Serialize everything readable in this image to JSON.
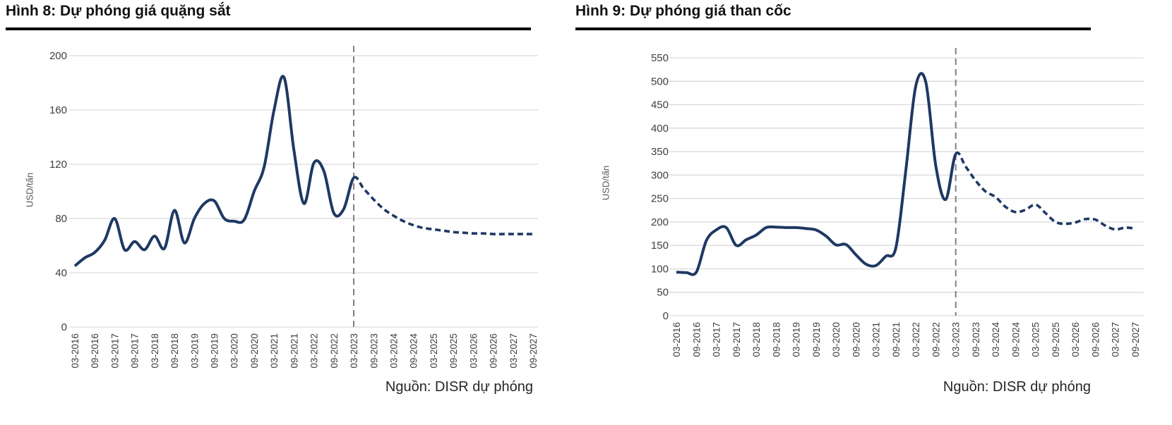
{
  "charts": [
    {
      "id": "iron-ore",
      "title": "Hình 8: Dự phóng giá quặng sắt",
      "source": "Nguồn: DISR dự phóng",
      "chart_data": {
        "type": "line",
        "title": "Dự phóng giá quặng sắt",
        "xlabel": "",
        "ylabel": "USD/tấn",
        "ylim": [
          0,
          200
        ],
        "ytick_step": 40,
        "grid": true,
        "legend": "none",
        "x_tick_labels": [
          "03-2016",
          "09-2016",
          "03-2017",
          "09-2017",
          "03-2018",
          "09-2018",
          "03-2019",
          "09-2019",
          "03-2020",
          "09-2020",
          "03-2021",
          "09-2021",
          "03-2022",
          "09-2022",
          "03-2023",
          "09-2023",
          "03-2024",
          "09-2024",
          "03-2025",
          "09-2025",
          "03-2026",
          "09-2026",
          "03-2027",
          "09-2027"
        ],
        "x_quarters": [
          "03-2016",
          "06-2016",
          "09-2016",
          "12-2016",
          "03-2017",
          "06-2017",
          "09-2017",
          "12-2017",
          "03-2018",
          "06-2018",
          "09-2018",
          "12-2018",
          "03-2019",
          "06-2019",
          "09-2019",
          "12-2019",
          "03-2020",
          "06-2020",
          "09-2020",
          "12-2020",
          "03-2021",
          "06-2021",
          "09-2021",
          "12-2021",
          "03-2022",
          "06-2022",
          "09-2022",
          "12-2022",
          "03-2023",
          "06-2023",
          "09-2023",
          "12-2023",
          "03-2024",
          "06-2024",
          "09-2024",
          "12-2024",
          "03-2025",
          "06-2025",
          "09-2025",
          "12-2025",
          "03-2026",
          "06-2026",
          "09-2026",
          "12-2026",
          "03-2027",
          "06-2027",
          "09-2027"
        ],
        "values": [
          45,
          51,
          55,
          64,
          80,
          57,
          63,
          57,
          67,
          58,
          86,
          62,
          80,
          91,
          93,
          80,
          78,
          79,
          100,
          118,
          160,
          184,
          130,
          91,
          121,
          115,
          84,
          87,
          110,
          102,
          94,
          87,
          82,
          78,
          75,
          73,
          72,
          71,
          70,
          69.5,
          69,
          69,
          68.5,
          68.5,
          68.5,
          68.5,
          68.5
        ],
        "forecast_start_index": 28,
        "forecast_start_label": "03-2023",
        "series_style": {
          "historical": "solid",
          "forecast": "dashed"
        },
        "divider": {
          "at_label": "03-2023",
          "style": "vertical-dashed-line"
        }
      }
    },
    {
      "id": "coking-coal",
      "title": "Hình 9: Dự phóng giá than cốc",
      "source": "Nguồn: DISR dự phóng",
      "chart_data": {
        "type": "line",
        "title": "Dự phóng giá than cốc",
        "xlabel": "",
        "ylabel": "USD/tấn",
        "ylim": [
          0,
          550
        ],
        "ytick_step": 50,
        "grid": true,
        "legend": "none",
        "x_tick_labels": [
          "03-2016",
          "09-2016",
          "03-2017",
          "09-2017",
          "03-2018",
          "09-2018",
          "03-2019",
          "09-2019",
          "03-2020",
          "09-2020",
          "03-2021",
          "09-2021",
          "03-2022",
          "09-2022",
          "03-2023",
          "09-2023",
          "03-2024",
          "09-2024",
          "03-2025",
          "09-2025",
          "03-2026",
          "09-2026",
          "03-2027",
          "09-2027"
        ],
        "x_quarters": [
          "03-2016",
          "06-2016",
          "09-2016",
          "12-2016",
          "03-2017",
          "06-2017",
          "09-2017",
          "12-2017",
          "03-2018",
          "06-2018",
          "09-2018",
          "12-2018",
          "03-2019",
          "06-2019",
          "09-2019",
          "12-2019",
          "03-2020",
          "06-2020",
          "09-2020",
          "12-2020",
          "03-2021",
          "06-2021",
          "09-2021",
          "12-2021",
          "03-2022",
          "06-2022",
          "09-2022",
          "12-2022",
          "03-2023",
          "06-2023",
          "09-2023",
          "12-2023",
          "03-2024",
          "06-2024",
          "09-2024",
          "12-2024",
          "03-2025",
          "06-2025",
          "09-2025",
          "12-2025",
          "03-2026",
          "06-2026",
          "09-2026",
          "12-2026",
          "03-2027",
          "06-2027",
          "09-2027"
        ],
        "values": [
          93,
          92,
          93,
          160,
          183,
          188,
          150,
          162,
          172,
          188,
          189,
          188,
          188,
          186,
          183,
          170,
          151,
          152,
          130,
          110,
          107,
          127,
          145,
          310,
          490,
          498,
          320,
          248,
          345,
          318,
          288,
          265,
          253,
          232,
          221,
          226,
          237,
          219,
          200,
          196,
          199,
          206,
          205,
          192,
          184,
          188,
          186
        ],
        "forecast_start_index": 28,
        "forecast_start_label": "03-2023",
        "series_style": {
          "historical": "solid",
          "forecast": "dashed"
        },
        "divider": {
          "at_label": "03-2023",
          "style": "vertical-dashed-line"
        }
      }
    }
  ],
  "theme": {
    "background": "#FFFFFF",
    "line_color": "#1F3864",
    "grid_color": "#D9D9D9",
    "divider_color": "#7F7F7F",
    "tick_label_color": "#3F3F3F",
    "y_unit_color": "#595959",
    "title_color": "#111111",
    "title_rule_color": "#000000",
    "source_color": "#262626"
  }
}
